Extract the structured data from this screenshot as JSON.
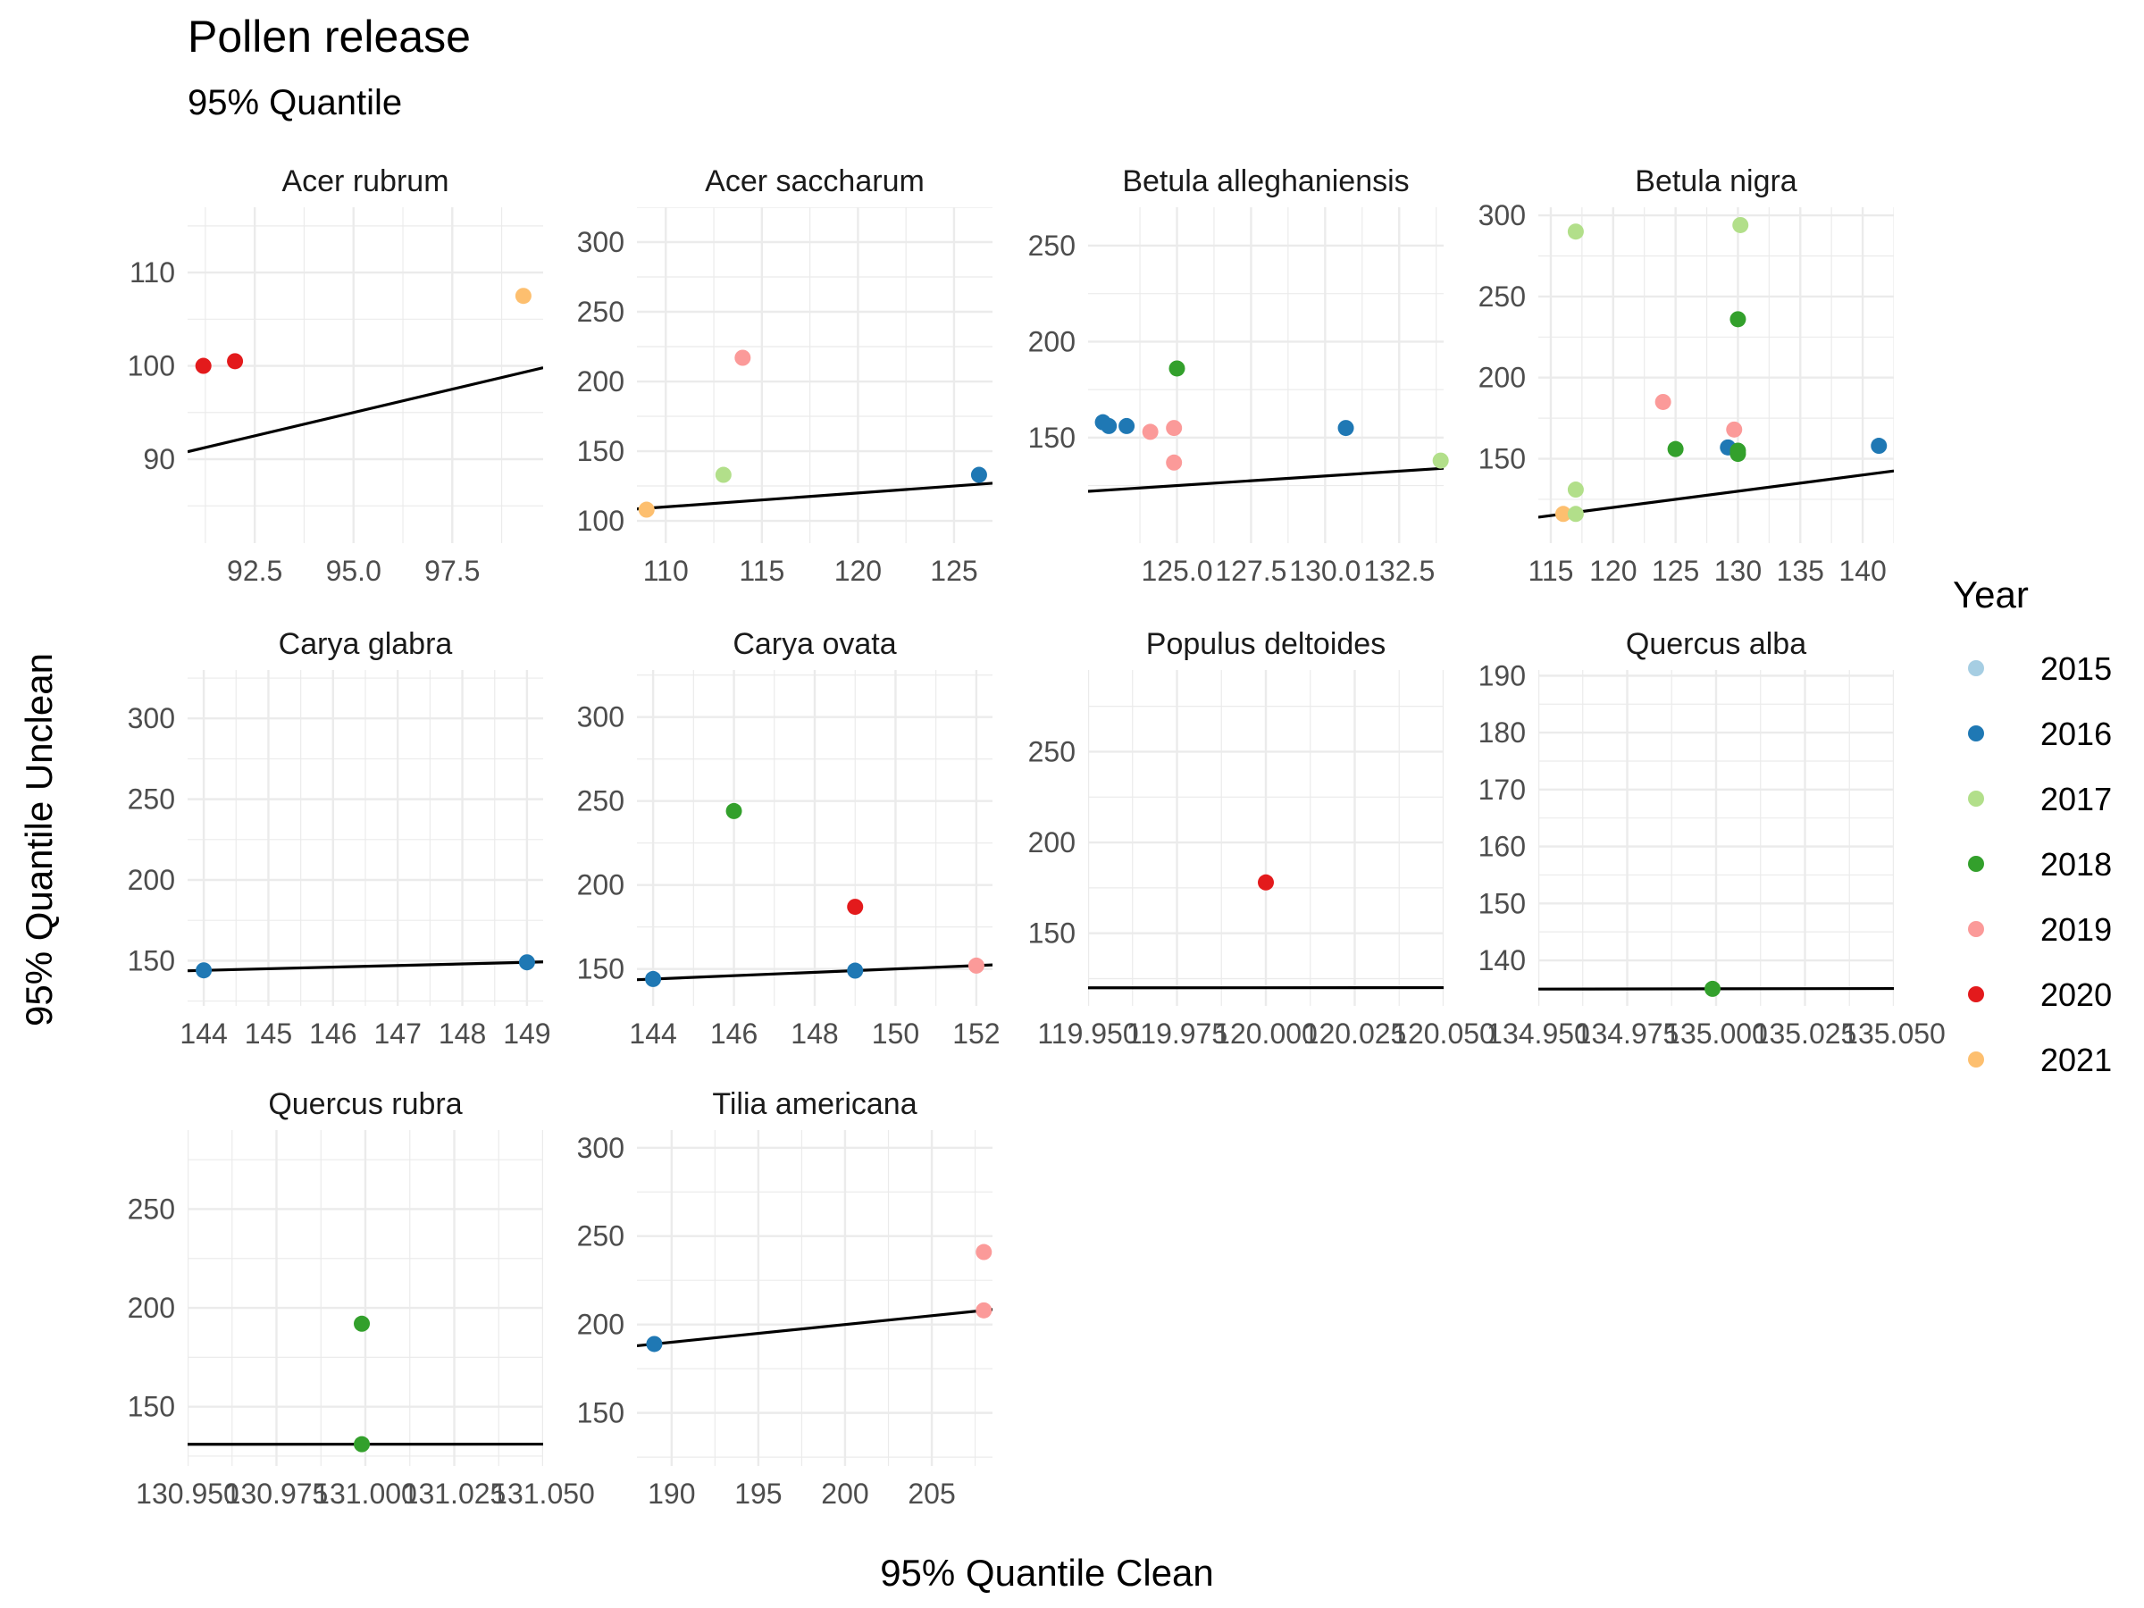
{
  "chart_data": {
    "type": "scatter",
    "title": "Pollen release",
    "subtitle": "95% Quantile",
    "xlabel": "95% Quantile Clean",
    "ylabel": "95% Quantile Unclean",
    "grid": true,
    "facet_scales": "free",
    "legend": {
      "title": "Year",
      "placement": "right",
      "entries": [
        {
          "name": "2015",
          "color": "#A6CEE3"
        },
        {
          "name": "2016",
          "color": "#1F78B4"
        },
        {
          "name": "2017",
          "color": "#B2DF8A"
        },
        {
          "name": "2018",
          "color": "#33A02C"
        },
        {
          "name": "2019",
          "color": "#FB9A99"
        },
        {
          "name": "2020",
          "color": "#E31A1C"
        },
        {
          "name": "2021",
          "color": "#FDBF6F"
        }
      ]
    },
    "reference_line": "y = x",
    "panels": [
      {
        "name": "Acer rubrum",
        "xlim": [
          90.8,
          99.8
        ],
        "ylim": [
          81,
          117
        ],
        "xticks": [
          "92.5",
          "95.0",
          "97.5"
        ],
        "yticks": [
          "90",
          "100",
          "110"
        ],
        "points": [
          {
            "x": 91.2,
            "y": 100,
            "year": "2020"
          },
          {
            "x": 92.0,
            "y": 100.5,
            "year": "2020"
          },
          {
            "x": 99.3,
            "y": 107.5,
            "year": "2021"
          }
        ]
      },
      {
        "name": "Acer saccharum",
        "xlim": [
          108.5,
          127
        ],
        "ylim": [
          84,
          325
        ],
        "xticks": [
          "110",
          "115",
          "120",
          "125"
        ],
        "yticks": [
          "100",
          "150",
          "200",
          "250",
          "300"
        ],
        "points": [
          {
            "x": 109,
            "y": 108,
            "year": "2021"
          },
          {
            "x": 113,
            "y": 133,
            "year": "2017"
          },
          {
            "x": 114,
            "y": 217,
            "year": "2019"
          },
          {
            "x": 126.3,
            "y": 133,
            "year": "2016"
          }
        ]
      },
      {
        "name": "Betula alleghaniensis",
        "xlim": [
          122,
          134
        ],
        "ylim": [
          95,
          270
        ],
        "xticks": [
          "125.0",
          "127.5",
          "130.0",
          "132.5"
        ],
        "yticks": [
          "150",
          "200",
          "250"
        ],
        "points": [
          {
            "x": 122.5,
            "y": 158,
            "year": "2016"
          },
          {
            "x": 122.7,
            "y": 156,
            "year": "2016"
          },
          {
            "x": 123.3,
            "y": 156,
            "year": "2016"
          },
          {
            "x": 124.1,
            "y": 153,
            "year": "2019"
          },
          {
            "x": 124.9,
            "y": 155,
            "year": "2019"
          },
          {
            "x": 124.9,
            "y": 137,
            "year": "2019"
          },
          {
            "x": 125.0,
            "y": 186,
            "year": "2018"
          },
          {
            "x": 130.7,
            "y": 155,
            "year": "2016"
          },
          {
            "x": 133.9,
            "y": 138,
            "year": "2017"
          }
        ]
      },
      {
        "name": "Betula nigra",
        "xlim": [
          114,
          142.5
        ],
        "ylim": [
          98,
          305
        ],
        "xticks": [
          "115",
          "120",
          "125",
          "130",
          "135",
          "140"
        ],
        "yticks": [
          "150",
          "200",
          "250",
          "300"
        ],
        "points": [
          {
            "x": 116,
            "y": 116,
            "year": "2021"
          },
          {
            "x": 117,
            "y": 290,
            "year": "2017"
          },
          {
            "x": 117,
            "y": 131,
            "year": "2017"
          },
          {
            "x": 117,
            "y": 116,
            "year": "2017"
          },
          {
            "x": 124,
            "y": 185,
            "year": "2019"
          },
          {
            "x": 125,
            "y": 156,
            "year": "2018"
          },
          {
            "x": 129.2,
            "y": 157,
            "year": "2016"
          },
          {
            "x": 129.7,
            "y": 168,
            "year": "2019"
          },
          {
            "x": 130,
            "y": 155,
            "year": "2018"
          },
          {
            "x": 130,
            "y": 153,
            "year": "2018"
          },
          {
            "x": 130,
            "y": 236,
            "year": "2018"
          },
          {
            "x": 130.2,
            "y": 294,
            "year": "2017"
          },
          {
            "x": 141.3,
            "y": 158,
            "year": "2016"
          }
        ]
      },
      {
        "name": "Carya glabra",
        "xlim": [
          143.75,
          149.25
        ],
        "ylim": [
          122,
          330
        ],
        "xticks": [
          "144",
          "145",
          "146",
          "147",
          "148",
          "149"
        ],
        "yticks": [
          "150",
          "200",
          "250",
          "300"
        ],
        "points": [
          {
            "x": 144,
            "y": 144,
            "year": "2016"
          },
          {
            "x": 149,
            "y": 149,
            "year": "2016"
          }
        ]
      },
      {
        "name": "Carya ovata",
        "xlim": [
          143.6,
          152.4
        ],
        "ylim": [
          128,
          328
        ],
        "xticks": [
          "144",
          "146",
          "148",
          "150",
          "152"
        ],
        "yticks": [
          "150",
          "200",
          "250",
          "300"
        ],
        "points": [
          {
            "x": 144,
            "y": 144,
            "year": "2016"
          },
          {
            "x": 146,
            "y": 244,
            "year": "2018"
          },
          {
            "x": 149,
            "y": 187,
            "year": "2020"
          },
          {
            "x": 149,
            "y": 149,
            "year": "2016"
          },
          {
            "x": 152,
            "y": 152,
            "year": "2019"
          }
        ]
      },
      {
        "name": "Populus deltoides",
        "xlim": [
          119.95,
          120.05
        ],
        "ylim": [
          110,
          295
        ],
        "xticks": [
          "119.950",
          "119.975",
          "120.000",
          "120.025",
          "120.050"
        ],
        "yticks": [
          "150",
          "200",
          "250"
        ],
        "points": [
          {
            "x": 120.0,
            "y": 178,
            "year": "2020"
          }
        ]
      },
      {
        "name": "Quercus alba",
        "xlim": [
          134.95,
          135.05
        ],
        "ylim": [
          132,
          191
        ],
        "xticks": [
          "134.950",
          "134.975",
          "135.000",
          "135.025",
          "135.050"
        ],
        "yticks": [
          "140",
          "150",
          "160",
          "170",
          "180",
          "190"
        ],
        "points": [
          {
            "x": 134.999,
            "y": 135,
            "year": "2018"
          }
        ]
      },
      {
        "name": "Quercus rubra",
        "xlim": [
          130.95,
          131.05
        ],
        "ylim": [
          120,
          290
        ],
        "xticks": [
          "130.950",
          "130.975",
          "131.000",
          "131.025",
          "131.050"
        ],
        "yticks": [
          "150",
          "200",
          "250"
        ],
        "points": [
          {
            "x": 130.999,
            "y": 192,
            "year": "2018"
          },
          {
            "x": 130.999,
            "y": 131,
            "year": "2018"
          }
        ]
      },
      {
        "name": "Tilia americana",
        "xlim": [
          188,
          208.5
        ],
        "ylim": [
          120,
          310
        ],
        "xticks": [
          "190",
          "195",
          "200",
          "205"
        ],
        "yticks": [
          "150",
          "200",
          "250",
          "300"
        ],
        "points": [
          {
            "x": 189,
            "y": 189,
            "year": "2016"
          },
          {
            "x": 208,
            "y": 241,
            "year": "2019"
          },
          {
            "x": 208,
            "y": 208,
            "year": "2019"
          }
        ]
      }
    ]
  }
}
